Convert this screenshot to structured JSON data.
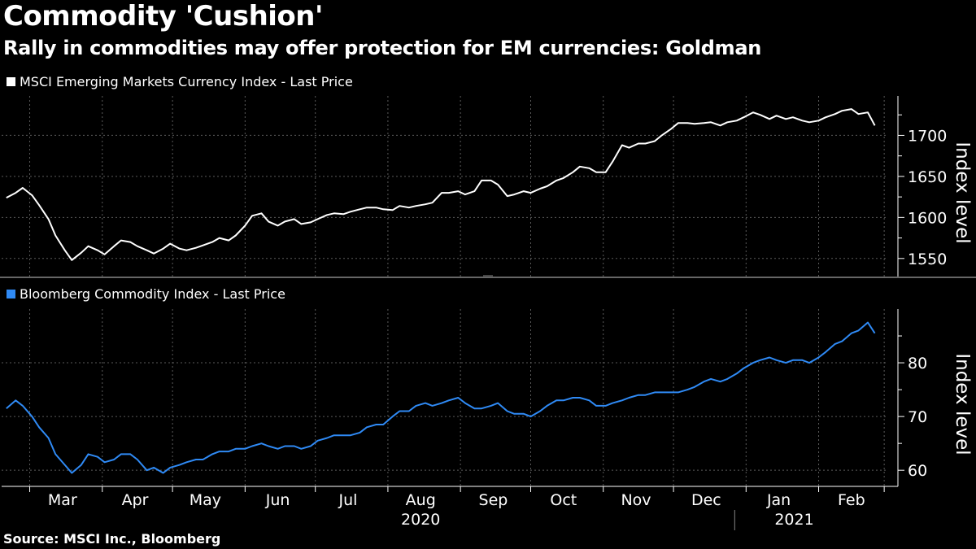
{
  "title": "Commodity 'Cushion'",
  "subtitle": "Rally in commodities may offer protection for EM currencies: Goldman",
  "source": "Source: MSCI Inc., Bloomberg",
  "colors": {
    "background": "#000000",
    "series1": "#ffffff",
    "series2": "#2f8af5",
    "grid": "#555555"
  },
  "chart_data": [
    {
      "type": "line",
      "legend": "MSCI Emerging Markets Currency Index - Last Price",
      "ylabel": "Index level",
      "ylim": [
        1528,
        1748
      ],
      "yticks": [
        1550,
        1600,
        1650,
        1700
      ],
      "grid": true,
      "series": [
        {
          "color": "#ffffff",
          "points": [
            [
              "2020-02-20",
              1624
            ],
            [
              "2020-02-24",
              1630
            ],
            [
              "2020-02-27",
              1636
            ],
            [
              "2020-03-02",
              1627
            ],
            [
              "2020-03-05",
              1615
            ],
            [
              "2020-03-09",
              1598
            ],
            [
              "2020-03-12",
              1578
            ],
            [
              "2020-03-16",
              1560
            ],
            [
              "2020-03-19",
              1548
            ],
            [
              "2020-03-23",
              1557
            ],
            [
              "2020-03-26",
              1565
            ],
            [
              "2020-03-30",
              1560
            ],
            [
              "2020-04-02",
              1555
            ],
            [
              "2020-04-06",
              1565
            ],
            [
              "2020-04-09",
              1572
            ],
            [
              "2020-04-13",
              1570
            ],
            [
              "2020-04-16",
              1565
            ],
            [
              "2020-04-20",
              1560
            ],
            [
              "2020-04-23",
              1556
            ],
            [
              "2020-04-27",
              1562
            ],
            [
              "2020-04-30",
              1568
            ],
            [
              "2020-05-04",
              1562
            ],
            [
              "2020-05-07",
              1560
            ],
            [
              "2020-05-11",
              1563
            ],
            [
              "2020-05-14",
              1566
            ],
            [
              "2020-05-18",
              1570
            ],
            [
              "2020-05-21",
              1575
            ],
            [
              "2020-05-25",
              1572
            ],
            [
              "2020-05-28",
              1578
            ],
            [
              "2020-06-01",
              1590
            ],
            [
              "2020-06-04",
              1602
            ],
            [
              "2020-06-08",
              1605
            ],
            [
              "2020-06-11",
              1595
            ],
            [
              "2020-06-15",
              1590
            ],
            [
              "2020-06-18",
              1595
            ],
            [
              "2020-06-22",
              1598
            ],
            [
              "2020-06-25",
              1592
            ],
            [
              "2020-06-29",
              1594
            ],
            [
              "2020-07-02",
              1598
            ],
            [
              "2020-07-06",
              1603
            ],
            [
              "2020-07-09",
              1605
            ],
            [
              "2020-07-13",
              1604
            ],
            [
              "2020-07-16",
              1607
            ],
            [
              "2020-07-20",
              1610
            ],
            [
              "2020-07-23",
              1612
            ],
            [
              "2020-07-27",
              1612
            ],
            [
              "2020-07-30",
              1610
            ],
            [
              "2020-08-03",
              1609
            ],
            [
              "2020-08-06",
              1614
            ],
            [
              "2020-08-10",
              1612
            ],
            [
              "2020-08-13",
              1614
            ],
            [
              "2020-08-17",
              1616
            ],
            [
              "2020-08-20",
              1618
            ],
            [
              "2020-08-24",
              1630
            ],
            [
              "2020-08-27",
              1630
            ],
            [
              "2020-08-31",
              1632
            ],
            [
              "2020-09-03",
              1628
            ],
            [
              "2020-09-07",
              1632
            ],
            [
              "2020-09-10",
              1645
            ],
            [
              "2020-09-14",
              1645
            ],
            [
              "2020-09-17",
              1640
            ],
            [
              "2020-09-21",
              1626
            ],
            [
              "2020-09-24",
              1628
            ],
            [
              "2020-09-28",
              1632
            ],
            [
              "2020-10-01",
              1630
            ],
            [
              "2020-10-05",
              1635
            ],
            [
              "2020-10-08",
              1638
            ],
            [
              "2020-10-12",
              1645
            ],
            [
              "2020-10-15",
              1648
            ],
            [
              "2020-10-19",
              1655
            ],
            [
              "2020-10-22",
              1662
            ],
            [
              "2020-10-26",
              1660
            ],
            [
              "2020-10-29",
              1655
            ],
            [
              "2020-11-02",
              1655
            ],
            [
              "2020-11-05",
              1668
            ],
            [
              "2020-11-09",
              1688
            ],
            [
              "2020-11-12",
              1685
            ],
            [
              "2020-11-16",
              1690
            ],
            [
              "2020-11-19",
              1690
            ],
            [
              "2020-11-23",
              1693
            ],
            [
              "2020-11-26",
              1700
            ],
            [
              "2020-11-30",
              1708
            ],
            [
              "2020-12-03",
              1715
            ],
            [
              "2020-12-07",
              1715
            ],
            [
              "2020-12-10",
              1714
            ],
            [
              "2020-12-14",
              1715
            ],
            [
              "2020-12-17",
              1716
            ],
            [
              "2020-12-21",
              1712
            ],
            [
              "2020-12-24",
              1716
            ],
            [
              "2020-12-28",
              1718
            ],
            [
              "2020-12-31",
              1722
            ],
            [
              "2021-01-04",
              1728
            ],
            [
              "2021-01-07",
              1725
            ],
            [
              "2021-01-11",
              1720
            ],
            [
              "2021-01-14",
              1724
            ],
            [
              "2021-01-18",
              1720
            ],
            [
              "2021-01-21",
              1722
            ],
            [
              "2021-01-25",
              1718
            ],
            [
              "2021-01-28",
              1716
            ],
            [
              "2021-02-01",
              1718
            ],
            [
              "2021-02-04",
              1722
            ],
            [
              "2021-02-08",
              1726
            ],
            [
              "2021-02-11",
              1730
            ],
            [
              "2021-02-15",
              1732
            ],
            [
              "2021-02-18",
              1726
            ],
            [
              "2021-02-22",
              1728
            ],
            [
              "2021-02-25",
              1712
            ]
          ]
        }
      ]
    },
    {
      "type": "line",
      "legend": "Bloomberg Commodity Index - Last Price",
      "ylabel": "Index level",
      "ylim": [
        57,
        90
      ],
      "yticks": [
        60,
        70,
        80
      ],
      "grid": true,
      "series": [
        {
          "color": "#2f8af5",
          "points": [
            [
              "2020-02-20",
              71.5
            ],
            [
              "2020-02-24",
              73
            ],
            [
              "2020-02-27",
              72
            ],
            [
              "2020-03-02",
              70
            ],
            [
              "2020-03-05",
              68
            ],
            [
              "2020-03-09",
              66
            ],
            [
              "2020-03-12",
              63
            ],
            [
              "2020-03-16",
              61
            ],
            [
              "2020-03-19",
              59.5
            ],
            [
              "2020-03-23",
              61
            ],
            [
              "2020-03-26",
              63
            ],
            [
              "2020-03-30",
              62.5
            ],
            [
              "2020-04-02",
              61.5
            ],
            [
              "2020-04-06",
              62
            ],
            [
              "2020-04-09",
              63
            ],
            [
              "2020-04-13",
              63
            ],
            [
              "2020-04-16",
              62
            ],
            [
              "2020-04-20",
              60
            ],
            [
              "2020-04-23",
              60.5
            ],
            [
              "2020-04-27",
              59.5
            ],
            [
              "2020-04-30",
              60.5
            ],
            [
              "2020-05-04",
              61
            ],
            [
              "2020-05-07",
              61.5
            ],
            [
              "2020-05-11",
              62
            ],
            [
              "2020-05-14",
              62
            ],
            [
              "2020-05-18",
              63
            ],
            [
              "2020-05-21",
              63.5
            ],
            [
              "2020-05-25",
              63.5
            ],
            [
              "2020-05-28",
              64
            ],
            [
              "2020-06-01",
              64
            ],
            [
              "2020-06-04",
              64.5
            ],
            [
              "2020-06-08",
              65
            ],
            [
              "2020-06-11",
              64.5
            ],
            [
              "2020-06-15",
              64
            ],
            [
              "2020-06-18",
              64.5
            ],
            [
              "2020-06-22",
              64.5
            ],
            [
              "2020-06-25",
              64
            ],
            [
              "2020-06-29",
              64.5
            ],
            [
              "2020-07-02",
              65.5
            ],
            [
              "2020-07-06",
              66
            ],
            [
              "2020-07-09",
              66.5
            ],
            [
              "2020-07-13",
              66.5
            ],
            [
              "2020-07-16",
              66.5
            ],
            [
              "2020-07-20",
              67
            ],
            [
              "2020-07-23",
              68
            ],
            [
              "2020-07-27",
              68.5
            ],
            [
              "2020-07-30",
              68.5
            ],
            [
              "2020-08-03",
              70
            ],
            [
              "2020-08-06",
              71
            ],
            [
              "2020-08-10",
              71
            ],
            [
              "2020-08-13",
              72
            ],
            [
              "2020-08-17",
              72.5
            ],
            [
              "2020-08-20",
              72
            ],
            [
              "2020-08-24",
              72.5
            ],
            [
              "2020-08-27",
              73
            ],
            [
              "2020-08-31",
              73.5
            ],
            [
              "2020-09-03",
              72.5
            ],
            [
              "2020-09-07",
              71.5
            ],
            [
              "2020-09-10",
              71.5
            ],
            [
              "2020-09-14",
              72
            ],
            [
              "2020-09-17",
              72.5
            ],
            [
              "2020-09-21",
              71
            ],
            [
              "2020-09-24",
              70.5
            ],
            [
              "2020-09-28",
              70.5
            ],
            [
              "2020-10-01",
              70
            ],
            [
              "2020-10-05",
              71
            ],
            [
              "2020-10-08",
              72
            ],
            [
              "2020-10-12",
              73
            ],
            [
              "2020-10-15",
              73
            ],
            [
              "2020-10-19",
              73.5
            ],
            [
              "2020-10-22",
              73.5
            ],
            [
              "2020-10-26",
              73
            ],
            [
              "2020-10-29",
              72
            ],
            [
              "2020-11-02",
              72
            ],
            [
              "2020-11-05",
              72.5
            ],
            [
              "2020-11-09",
              73
            ],
            [
              "2020-11-12",
              73.5
            ],
            [
              "2020-11-16",
              74
            ],
            [
              "2020-11-19",
              74
            ],
            [
              "2020-11-23",
              74.5
            ],
            [
              "2020-11-26",
              74.5
            ],
            [
              "2020-11-30",
              74.5
            ],
            [
              "2020-12-03",
              74.5
            ],
            [
              "2020-12-07",
              75
            ],
            [
              "2020-12-10",
              75.5
            ],
            [
              "2020-12-14",
              76.5
            ],
            [
              "2020-12-17",
              77
            ],
            [
              "2020-12-21",
              76.5
            ],
            [
              "2020-12-24",
              77
            ],
            [
              "2020-12-28",
              78
            ],
            [
              "2020-12-31",
              79
            ],
            [
              "2021-01-04",
              80
            ],
            [
              "2021-01-07",
              80.5
            ],
            [
              "2021-01-11",
              81
            ],
            [
              "2021-01-14",
              80.5
            ],
            [
              "2021-01-18",
              80
            ],
            [
              "2021-01-21",
              80.5
            ],
            [
              "2021-01-25",
              80.5
            ],
            [
              "2021-01-28",
              80
            ],
            [
              "2021-02-01",
              81
            ],
            [
              "2021-02-04",
              82
            ],
            [
              "2021-02-08",
              83.5
            ],
            [
              "2021-02-11",
              84
            ],
            [
              "2021-02-15",
              85.5
            ],
            [
              "2021-02-18",
              86
            ],
            [
              "2021-02-22",
              87.5
            ],
            [
              "2021-02-25",
              85.5
            ]
          ]
        }
      ]
    }
  ],
  "x_axis": {
    "months": [
      {
        "label": "Mar",
        "date": "2020-03-15"
      },
      {
        "label": "Apr",
        "date": "2020-04-15"
      },
      {
        "label": "May",
        "date": "2020-05-15"
      },
      {
        "label": "Jun",
        "date": "2020-06-15"
      },
      {
        "label": "Jul",
        "date": "2020-07-15"
      },
      {
        "label": "Aug",
        "date": "2020-08-15"
      },
      {
        "label": "Sep",
        "date": "2020-09-15"
      },
      {
        "label": "Oct",
        "date": "2020-10-15"
      },
      {
        "label": "Nov",
        "date": "2020-11-15"
      },
      {
        "label": "Dec",
        "date": "2020-12-15"
      },
      {
        "label": "Jan",
        "date": "2021-01-15"
      },
      {
        "label": "Feb",
        "date": "2021-02-15"
      }
    ],
    "years": [
      {
        "label": "2020",
        "date": "2020-08-15"
      },
      {
        "label": "2021",
        "date": "2021-02-01"
      }
    ],
    "xlim": [
      "2020-02-18",
      "2021-03-02"
    ]
  }
}
